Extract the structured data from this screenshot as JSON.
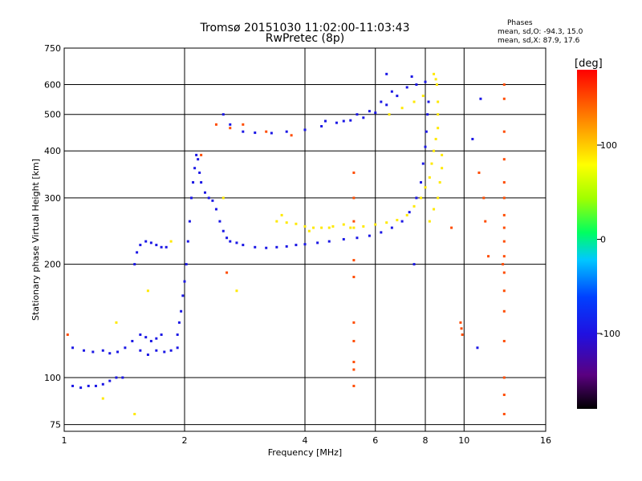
{
  "header": {
    "title_line1": "Tromsø 20151030 11:02:00-11:03:43",
    "title_line2": "RwPretec (8p)",
    "stats_title": "Phases",
    "stats_o": "mean, sd,O: -94.3, 15.0",
    "stats_x": "mean, sd,X:  87.9, 17.6"
  },
  "chart_data": {
    "type": "scatter",
    "title": "Tromsø 20151030 11:02:00-11:03:43",
    "subtitle": "RwPretec (8p)",
    "xlabel": "Frequency [MHz]",
    "ylabel": "Stationary phase Virtual Height [km]",
    "xscale": "log",
    "yscale": "log",
    "xlim": [
      1,
      16
    ],
    "ylim": [
      72,
      750
    ],
    "x_ticks": [
      1,
      2,
      4,
      6,
      8,
      10,
      16
    ],
    "y_ticks": [
      75,
      100,
      200,
      300,
      400,
      500,
      600,
      750
    ],
    "grid": true,
    "colorbar": {
      "label": "[deg]",
      "range": [
        -180,
        180
      ],
      "ticks": [
        100,
        0,
        -100
      ],
      "colors": [
        "#000000",
        "#6a00a0",
        "#1a10e0",
        "#0050ff",
        "#00d0ff",
        "#00ff40",
        "#b0ff00",
        "#ffff00",
        "#ff8000",
        "#ff0000"
      ]
    },
    "series": [
      {
        "points": [
          [
            1.05,
            120
          ],
          [
            1.12,
            118
          ],
          [
            1.18,
            117
          ],
          [
            1.25,
            118
          ],
          [
            1.3,
            116
          ],
          [
            1.36,
            117
          ],
          [
            1.42,
            120
          ],
          [
            1.48,
            125
          ],
          [
            1.55,
            118
          ],
          [
            1.62,
            115
          ],
          [
            1.7,
            118
          ],
          [
            1.78,
            117
          ],
          [
            1.85,
            118
          ],
          [
            1.92,
            120
          ],
          [
            1.05,
            95
          ],
          [
            1.1,
            94
          ],
          [
            1.15,
            95
          ],
          [
            1.2,
            95
          ],
          [
            1.25,
            96
          ],
          [
            1.3,
            98
          ],
          [
            1.35,
            100
          ],
          [
            1.4,
            100
          ],
          [
            1.5,
            200
          ],
          [
            1.52,
            215
          ],
          [
            1.55,
            225
          ],
          [
            1.6,
            230
          ],
          [
            1.65,
            228
          ],
          [
            1.7,
            225
          ],
          [
            1.75,
            222
          ],
          [
            1.8,
            222
          ],
          [
            1.55,
            130
          ],
          [
            1.6,
            128
          ],
          [
            1.65,
            125
          ],
          [
            1.7,
            127
          ],
          [
            1.75,
            130
          ],
          [
            1.92,
            130
          ],
          [
            1.94,
            140
          ],
          [
            1.96,
            150
          ],
          [
            1.98,
            165
          ],
          [
            2.0,
            180
          ],
          [
            2.02,
            200
          ],
          [
            2.04,
            230
          ],
          [
            2.06,
            260
          ],
          [
            2.08,
            300
          ],
          [
            2.1,
            330
          ],
          [
            2.12,
            360
          ],
          [
            2.14,
            390
          ],
          [
            2.16,
            380
          ],
          [
            2.18,
            350
          ],
          [
            2.2,
            330
          ],
          [
            2.25,
            310
          ],
          [
            2.3,
            300
          ],
          [
            2.35,
            295
          ],
          [
            2.4,
            280
          ],
          [
            2.45,
            260
          ],
          [
            2.5,
            245
          ],
          [
            2.55,
            235
          ],
          [
            2.6,
            230
          ],
          [
            2.7,
            228
          ],
          [
            2.8,
            225
          ],
          [
            3.0,
            222
          ],
          [
            3.2,
            221
          ],
          [
            3.4,
            222
          ],
          [
            3.6,
            223
          ],
          [
            3.8,
            225
          ],
          [
            4.0,
            226
          ],
          [
            4.3,
            228
          ],
          [
            4.6,
            230
          ],
          [
            5.0,
            233
          ],
          [
            5.4,
            235
          ],
          [
            5.8,
            238
          ],
          [
            6.2,
            243
          ],
          [
            6.6,
            250
          ],
          [
            7.0,
            260
          ],
          [
            7.3,
            275
          ],
          [
            7.6,
            300
          ],
          [
            7.8,
            330
          ],
          [
            7.9,
            370
          ],
          [
            8.0,
            410
          ],
          [
            8.05,
            450
          ],
          [
            8.1,
            500
          ],
          [
            8.15,
            540
          ],
          [
            2.5,
            500
          ],
          [
            2.6,
            470
          ],
          [
            2.8,
            450
          ],
          [
            3.0,
            447
          ],
          [
            3.3,
            446
          ],
          [
            3.6,
            450
          ],
          [
            4.0,
            455
          ],
          [
            4.4,
            465
          ],
          [
            4.8,
            475
          ],
          [
            5.2,
            482
          ],
          [
            5.6,
            490
          ],
          [
            6.0,
            505
          ],
          [
            6.4,
            530
          ],
          [
            6.8,
            560
          ],
          [
            7.2,
            590
          ],
          [
            7.6,
            600
          ],
          [
            8.0,
            610
          ],
          [
            4.5,
            480
          ],
          [
            5.0,
            480
          ],
          [
            5.4,
            500
          ],
          [
            5.8,
            510
          ],
          [
            6.2,
            540
          ],
          [
            6.6,
            575
          ],
          [
            6.4,
            640
          ],
          [
            7.4,
            630
          ],
          [
            7.5,
            200
          ],
          [
            10.5,
            430
          ],
          [
            10.8,
            120
          ],
          [
            11.0,
            550
          ]
        ],
        "phase": -95
      },
      {
        "points": [
          [
            3.4,
            260
          ],
          [
            3.6,
            258
          ],
          [
            3.8,
            256
          ],
          [
            4.0,
            252
          ],
          [
            4.2,
            250
          ],
          [
            4.4,
            250
          ],
          [
            4.7,
            252
          ],
          [
            5.0,
            255
          ],
          [
            5.3,
            250
          ],
          [
            5.6,
            252
          ],
          [
            6.0,
            255
          ],
          [
            6.4,
            258
          ],
          [
            6.8,
            262
          ],
          [
            7.2,
            270
          ],
          [
            7.5,
            285
          ],
          [
            7.8,
            300
          ],
          [
            8.0,
            320
          ],
          [
            8.2,
            340
          ],
          [
            8.3,
            370
          ],
          [
            8.4,
            400
          ],
          [
            8.5,
            430
          ],
          [
            8.6,
            460
          ],
          [
            8.6,
            500
          ],
          [
            8.6,
            540
          ],
          [
            8.55,
            600
          ],
          [
            8.5,
            620
          ],
          [
            8.4,
            640
          ],
          [
            8.2,
            260
          ],
          [
            8.4,
            280
          ],
          [
            8.6,
            300
          ],
          [
            8.7,
            330
          ],
          [
            8.8,
            360
          ],
          [
            8.8,
            390
          ],
          [
            6.5,
            500
          ],
          [
            7.0,
            520
          ],
          [
            7.5,
            540
          ],
          [
            7.9,
            560
          ],
          [
            1.35,
            140
          ],
          [
            1.25,
            88
          ],
          [
            1.5,
            80
          ],
          [
            1.62,
            170
          ],
          [
            1.85,
            230
          ],
          [
            2.5,
            300
          ],
          [
            2.7,
            170
          ],
          [
            3.5,
            270
          ],
          [
            4.1,
            245
          ],
          [
            4.6,
            250
          ],
          [
            5.2,
            250
          ]
        ],
        "phase": 88
      },
      {
        "points": [
          [
            2.2,
            390
          ],
          [
            2.4,
            470
          ],
          [
            2.6,
            460
          ],
          [
            2.8,
            470
          ],
          [
            3.2,
            450
          ],
          [
            3.7,
            440
          ],
          [
            5.3,
            350
          ],
          [
            5.3,
            300
          ],
          [
            5.3,
            260
          ],
          [
            5.3,
            205
          ],
          [
            5.3,
            185
          ],
          [
            5.3,
            140
          ],
          [
            5.3,
            125
          ],
          [
            5.3,
            110
          ],
          [
            5.3,
            105
          ],
          [
            5.3,
            95
          ],
          [
            9.8,
            140
          ],
          [
            9.85,
            135
          ],
          [
            9.9,
            130
          ],
          [
            12.6,
            600
          ],
          [
            12.6,
            550
          ],
          [
            12.6,
            450
          ],
          [
            12.6,
            380
          ],
          [
            12.6,
            330
          ],
          [
            12.6,
            300
          ],
          [
            12.6,
            270
          ],
          [
            12.6,
            250
          ],
          [
            12.6,
            230
          ],
          [
            12.6,
            210
          ],
          [
            12.6,
            190
          ],
          [
            12.6,
            170
          ],
          [
            12.6,
            150
          ],
          [
            12.6,
            125
          ],
          [
            12.6,
            100
          ],
          [
            12.6,
            90
          ],
          [
            12.6,
            80
          ],
          [
            11.2,
            300
          ],
          [
            11.3,
            260
          ],
          [
            11.5,
            210
          ],
          [
            12.5,
            200
          ],
          [
            9.3,
            250
          ],
          [
            10.9,
            350
          ],
          [
            1.02,
            130
          ],
          [
            2.55,
            190
          ]
        ],
        "phase": 150
      }
    ]
  }
}
